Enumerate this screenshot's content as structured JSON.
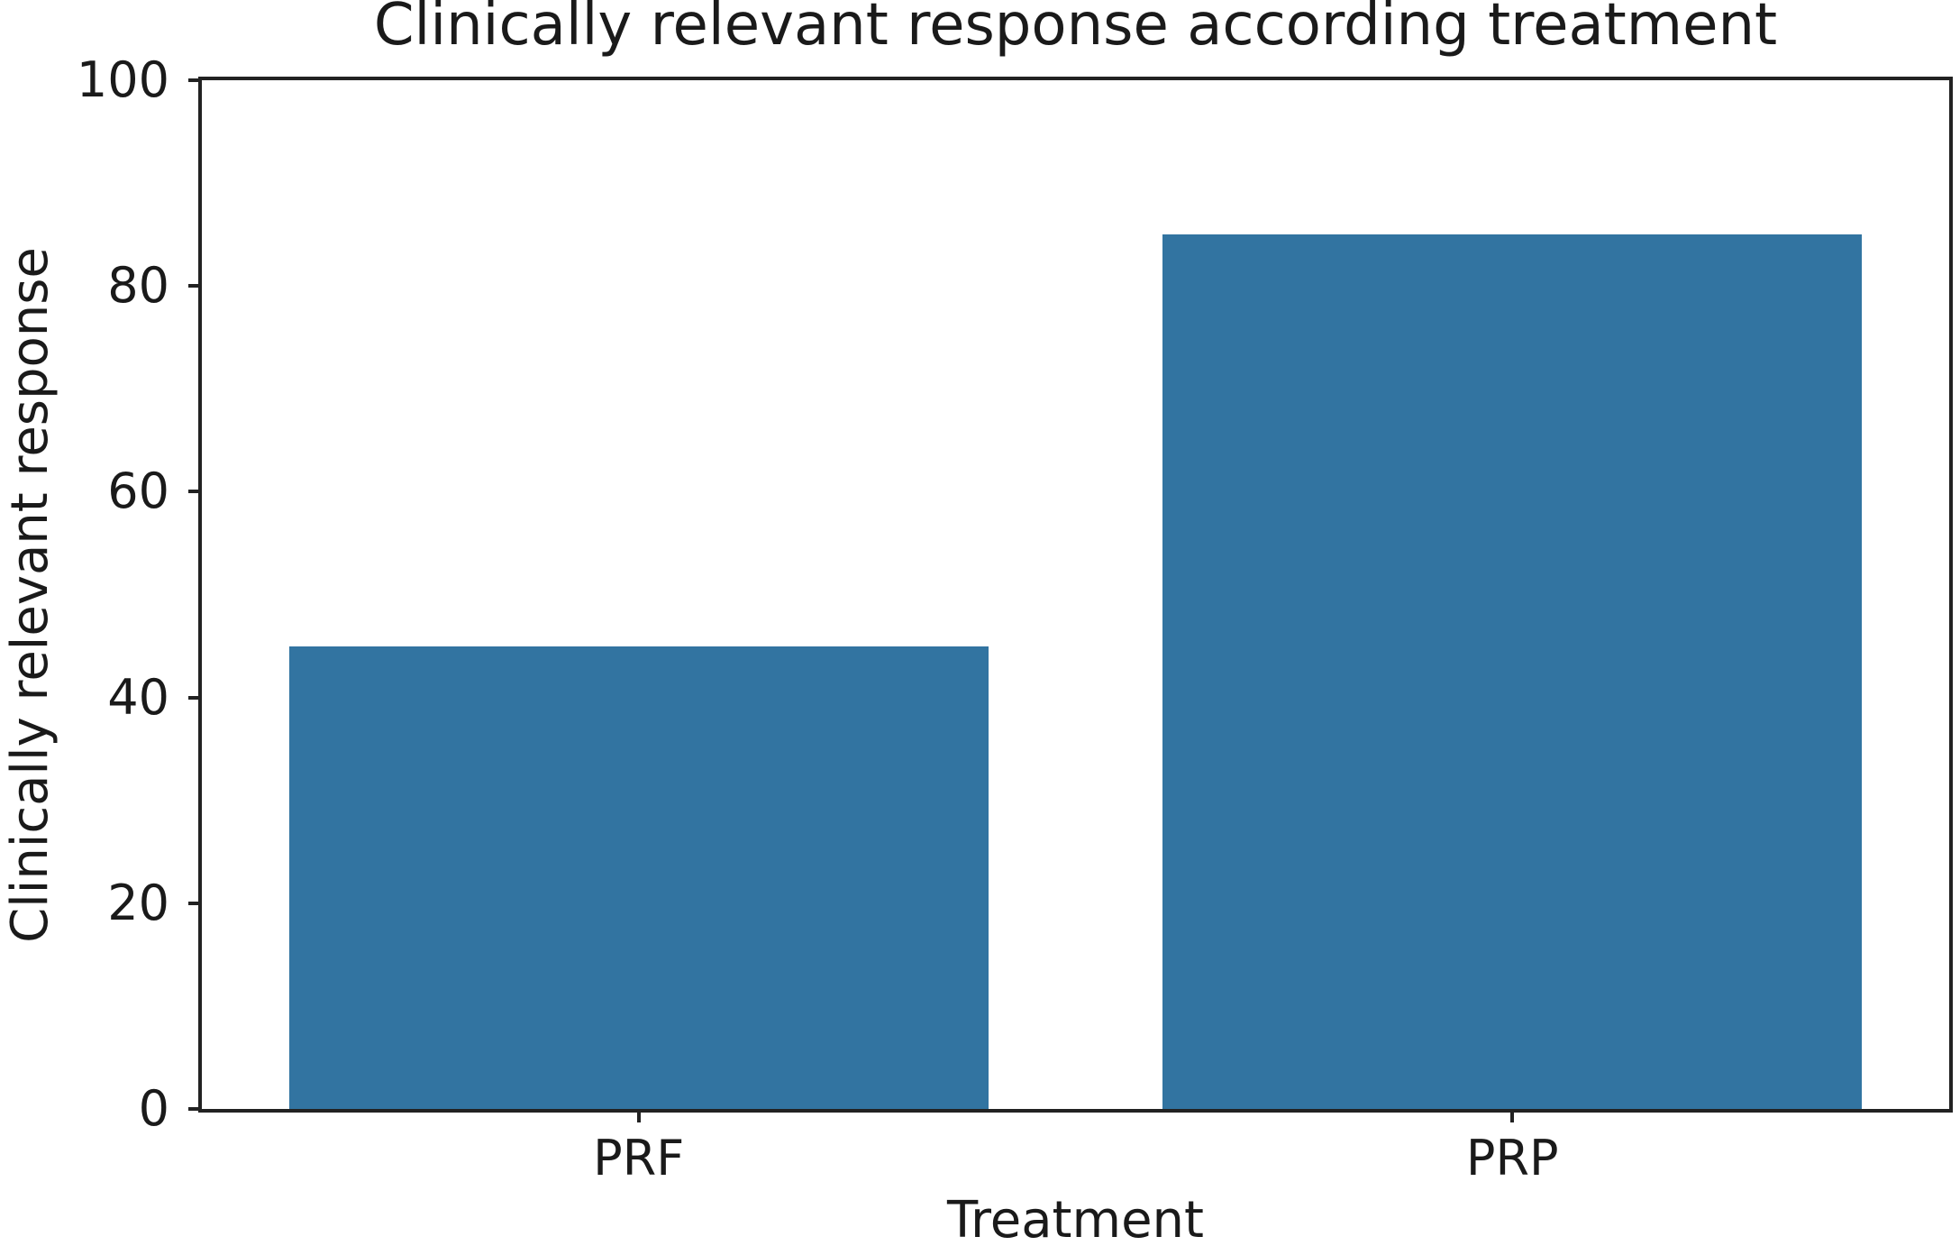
{
  "chart_data": {
    "type": "bar",
    "title": "Clinically relevant response according treatment",
    "xlabel": "Treatment",
    "ylabel": "Clinically relevant response",
    "categories": [
      "PRF",
      "PRP"
    ],
    "values": [
      45,
      85
    ],
    "ylim": [
      0,
      100
    ],
    "yticks": [
      0,
      20,
      40,
      60,
      80,
      100
    ],
    "grid": false,
    "legend_position": "none",
    "bar_color": "#3274a1",
    "axis_color": "#222222",
    "background_color": "#ffffff"
  }
}
